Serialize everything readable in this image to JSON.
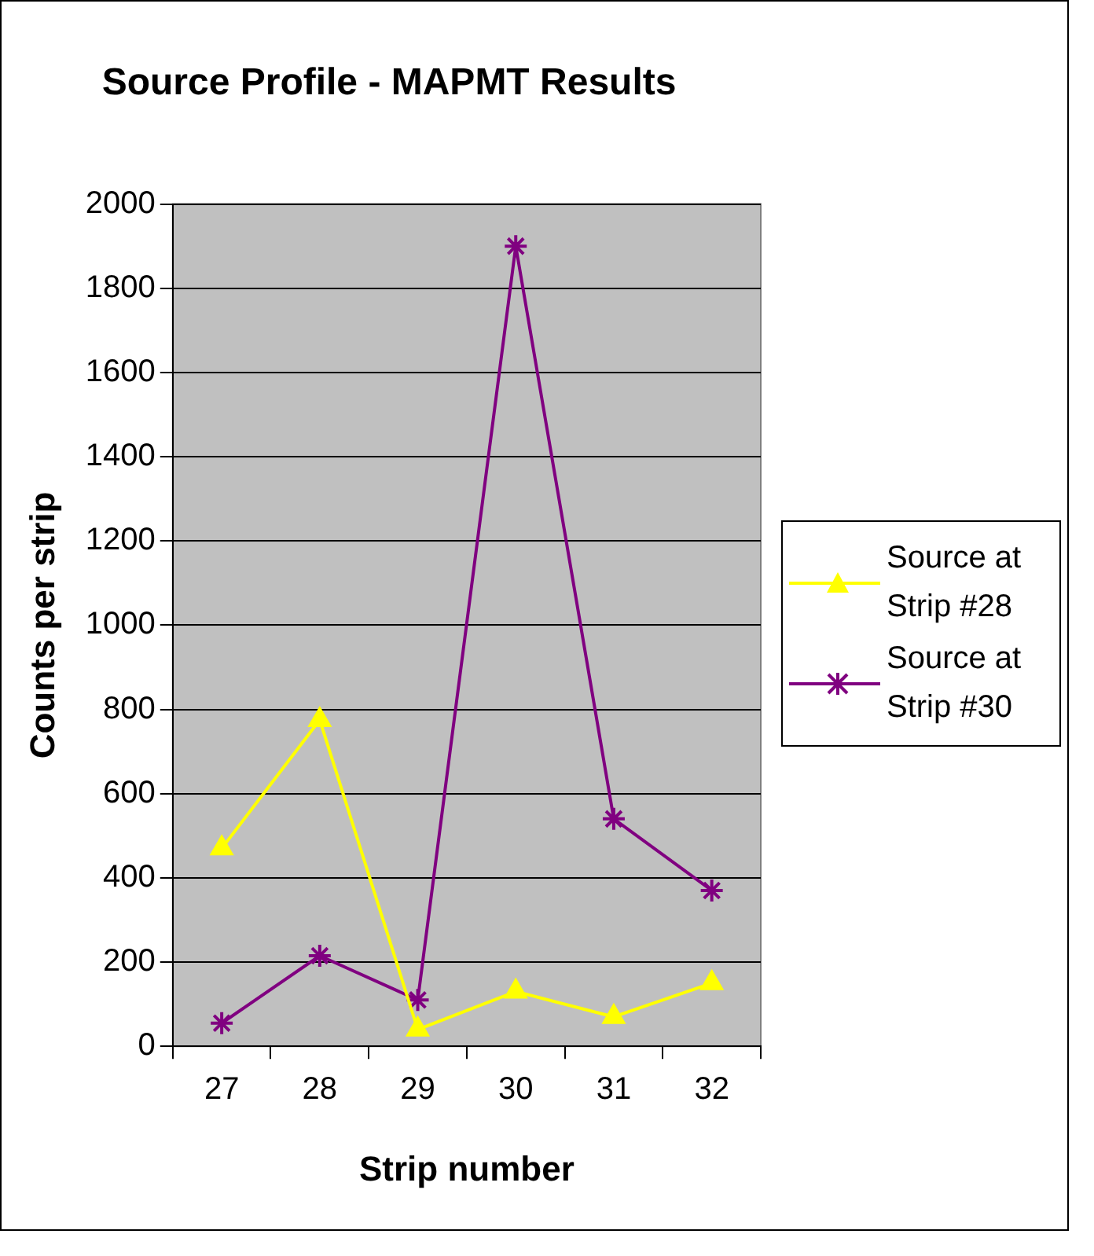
{
  "chart_data": {
    "type": "line",
    "title": "Source Profile - MAPMT Results",
    "xlabel": "Strip number",
    "ylabel": "Counts per strip",
    "categories": [
      "27",
      "28",
      "29",
      "30",
      "31",
      "32"
    ],
    "series": [
      {
        "name": "Source at Strip #28",
        "color": "#ffff00",
        "marker": "triangle",
        "values": [
          470,
          775,
          40,
          130,
          70,
          150
        ]
      },
      {
        "name": "Source at Strip #30",
        "color": "#800080",
        "marker": "cross",
        "values": [
          55,
          215,
          110,
          1900,
          540,
          370
        ]
      }
    ],
    "ylim": [
      0,
      2000
    ],
    "yticks": [
      0,
      200,
      400,
      600,
      800,
      1000,
      1200,
      1400,
      1600,
      1800,
      2000
    ],
    "grid": "y",
    "legend": "right"
  }
}
